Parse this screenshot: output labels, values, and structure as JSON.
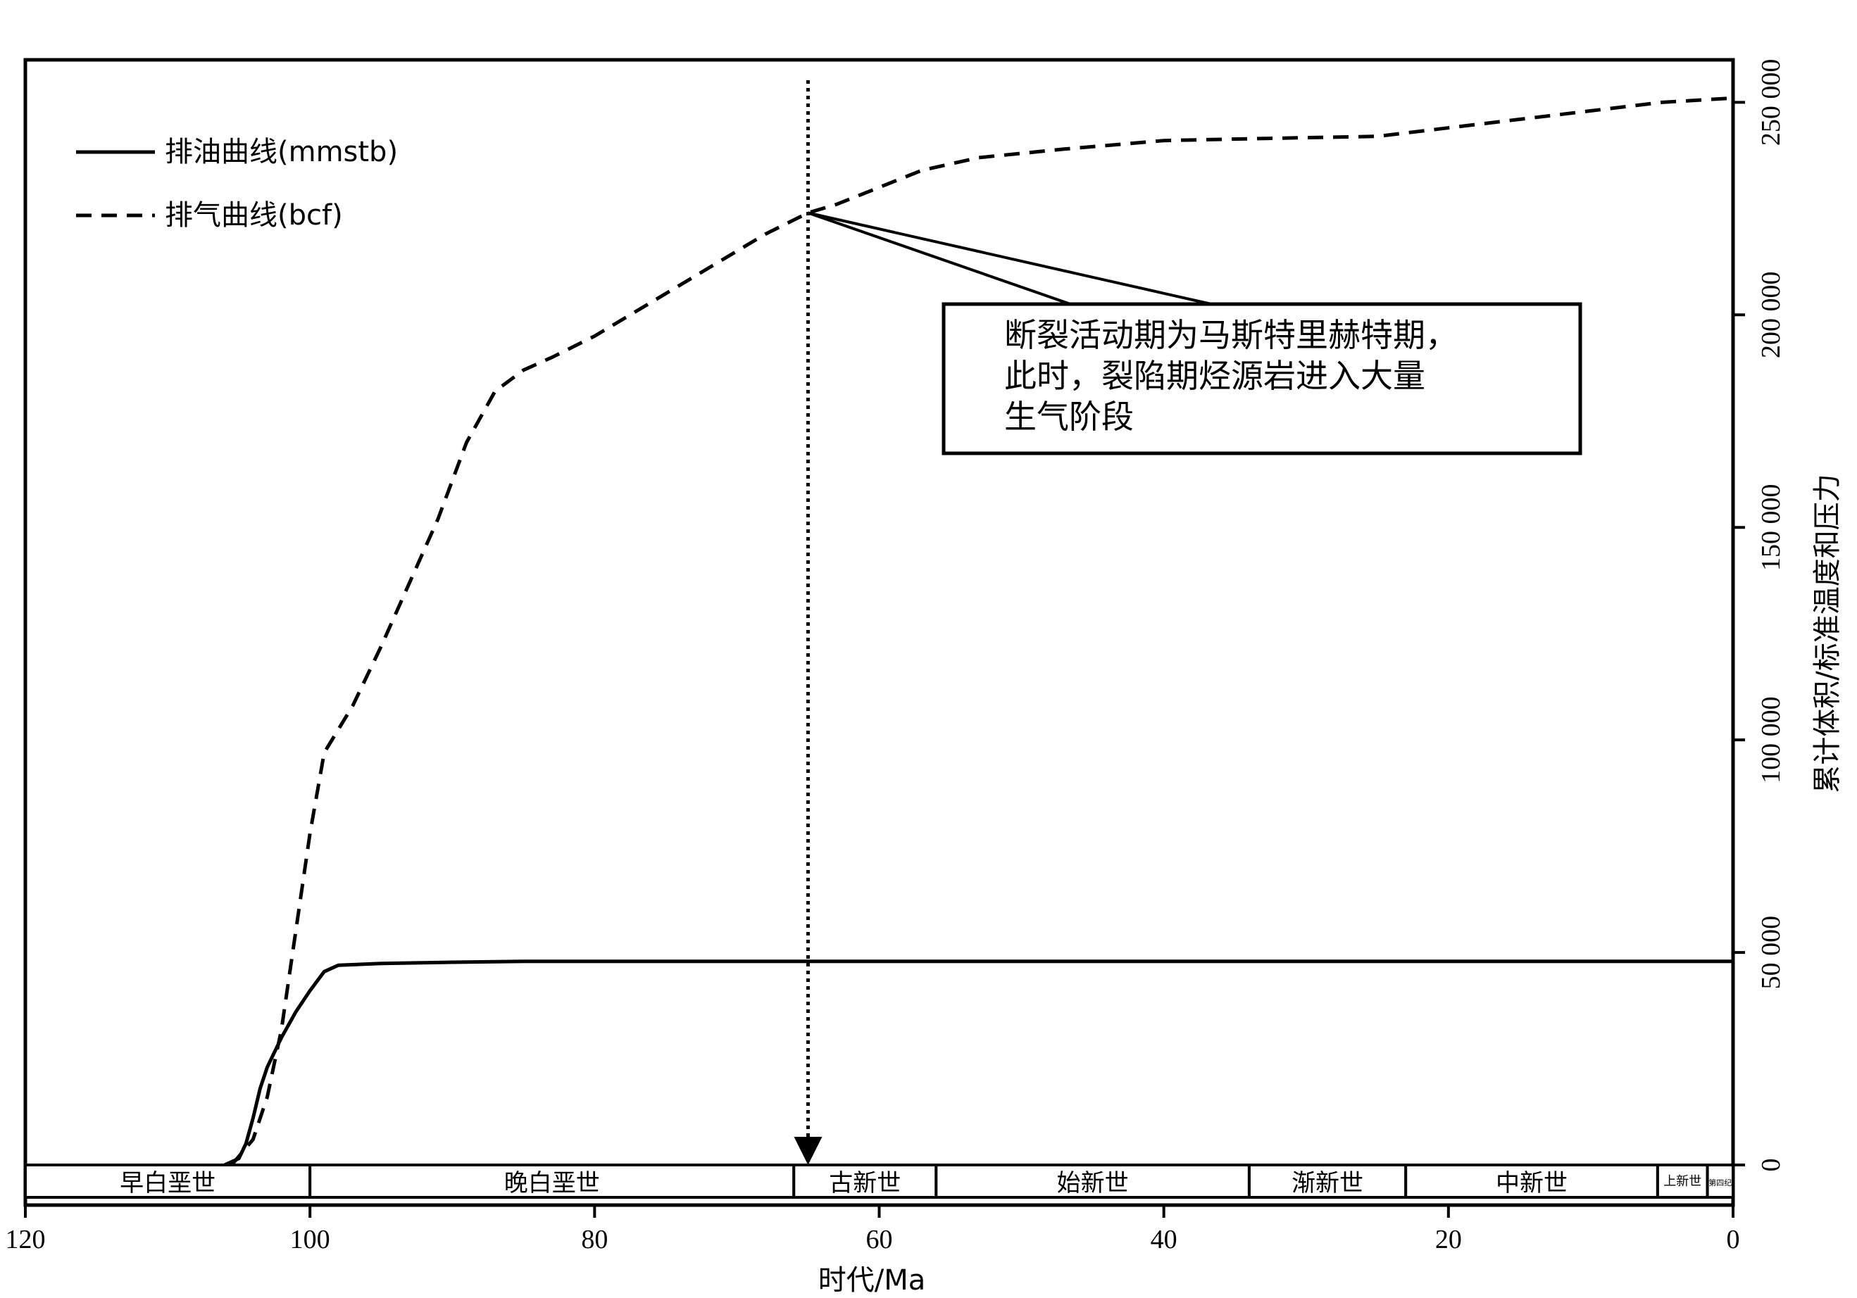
{
  "chart_data": {
    "type": "line",
    "xlabel": "时代/Ma",
    "ylabel": "累计体积/标准温度和压力",
    "xlim": [
      120,
      0
    ],
    "ylim": [
      0,
      260000
    ],
    "x_ticks": [
      120,
      100,
      80,
      60,
      40,
      20,
      0
    ],
    "x_tick_labels": [
      "120",
      "100",
      "80",
      "60",
      "40",
      "20",
      "0"
    ],
    "y_ticks": [
      0,
      50000,
      100000,
      150000,
      200000,
      250000
    ],
    "y_tick_labels": [
      "0",
      "50 000",
      "100 000",
      "150 000",
      "200 000",
      "250 000"
    ],
    "y_axis_position": "right",
    "grid": false,
    "legend_position": "top-left",
    "series": [
      {
        "name": "排油曲线(mmstb)",
        "style": "solid",
        "x": [
          106,
          105,
          104.5,
          104,
          103.5,
          103,
          102,
          101,
          100,
          99,
          98,
          95,
          90,
          85,
          70,
          50,
          30,
          10,
          0
        ],
        "y": [
          0,
          1500,
          5000,
          11000,
          18000,
          23000,
          30000,
          36000,
          41000,
          45500,
          47000,
          47400,
          47700,
          47900,
          47900,
          47900,
          47900,
          47900,
          47900
        ]
      },
      {
        "name": "排气曲线(bcf)",
        "style": "dashed",
        "x": [
          105.5,
          104,
          103,
          102,
          101,
          100,
          99,
          97,
          95,
          93,
          91,
          89,
          87,
          85,
          83,
          80,
          76,
          72,
          68,
          65,
          63,
          60,
          57,
          53,
          47,
          40,
          33,
          25,
          15,
          5,
          0
        ],
        "y": [
          0,
          6000,
          16000,
          32000,
          55000,
          78000,
          97000,
          108000,
          122000,
          137000,
          152000,
          170000,
          182000,
          187000,
          190000,
          195000,
          203000,
          211000,
          219000,
          224000,
          226000,
          230000,
          234000,
          237000,
          239000,
          241000,
          241500,
          242000,
          246000,
          250000,
          251000
        ]
      }
    ],
    "event_marker": {
      "x": 65,
      "y": 224000,
      "style": "dotted arrow"
    },
    "annotation": {
      "lines": [
        "断裂活动期为马斯特里赫特期，",
        "此时，裂陷期烃源岩进入大量",
        "生气阶段"
      ],
      "pointer_from": {
        "x": 65,
        "y": 224000
      }
    },
    "epochs": [
      {
        "label": "早白垩世",
        "start": 120,
        "end": 100
      },
      {
        "label": "晚白垩世",
        "start": 100,
        "end": 66
      },
      {
        "label": "古新世",
        "start": 66,
        "end": 56
      },
      {
        "label": "始新世",
        "start": 56,
        "end": 34
      },
      {
        "label": "渐新世",
        "start": 34,
        "end": 23
      },
      {
        "label": "中新世",
        "start": 23,
        "end": 5.3
      },
      {
        "label": "上新世",
        "start": 5.3,
        "end": 1.8
      },
      {
        "label": "第四纪",
        "start": 1.8,
        "end": 0
      }
    ]
  },
  "colors": {
    "line": "#000000",
    "background": "#ffffff"
  }
}
